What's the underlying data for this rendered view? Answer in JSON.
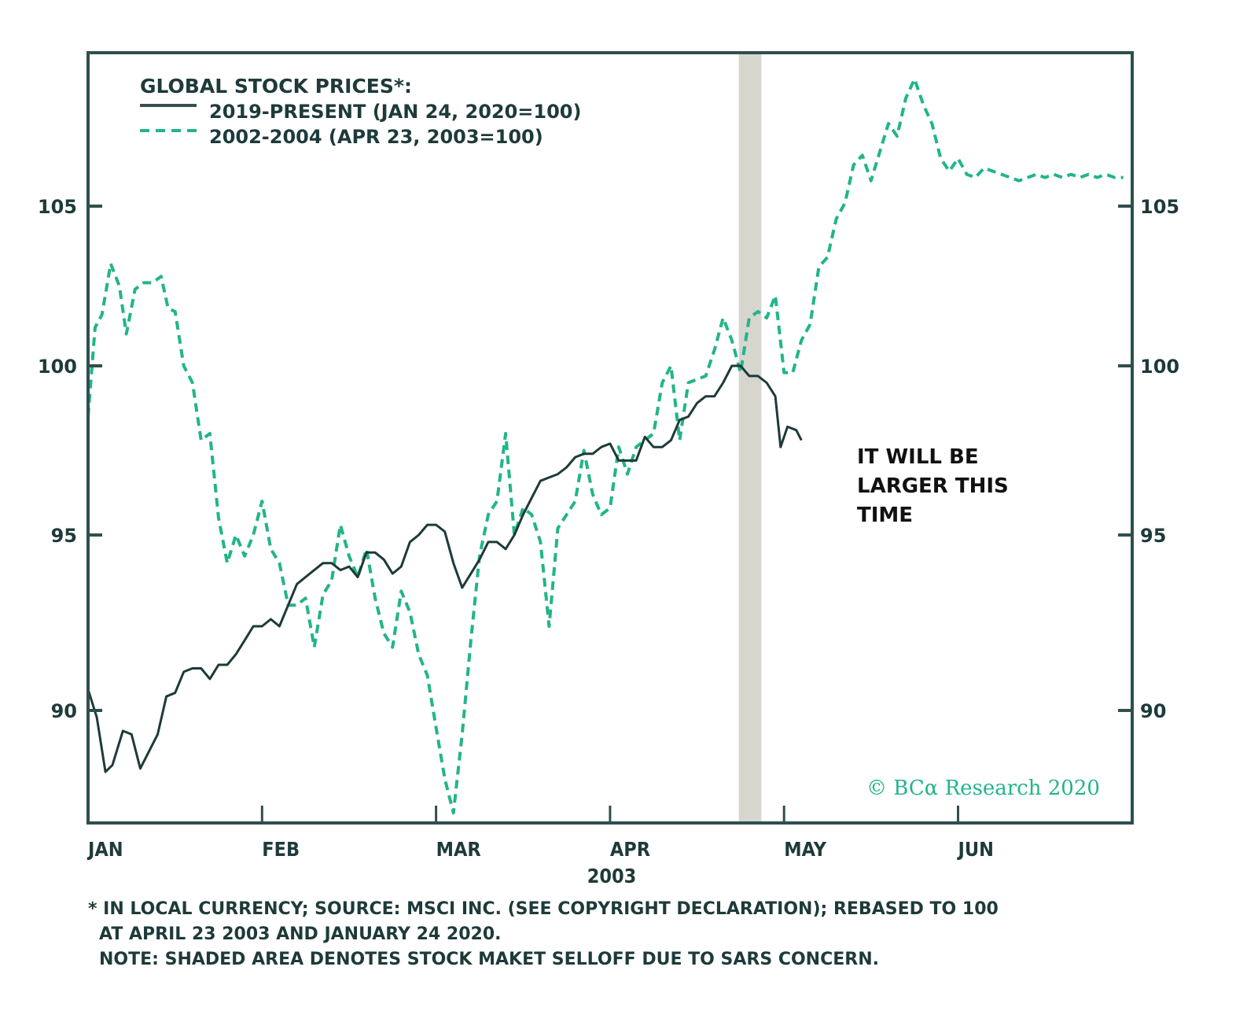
{
  "chart_data": {
    "type": "line",
    "title": "GLOBAL STOCK PRICES*:",
    "xlabel": "2003",
    "ylabel": "",
    "x_unit": "months elapsed since Jan 1 (2003 calendar)",
    "xlim": [
      0,
      6.0
    ],
    "ylim": [
      87,
      109.5
    ],
    "grid": false,
    "legend_position": "top-left",
    "x_ticks": [
      0,
      1,
      2,
      3,
      4,
      5
    ],
    "x_tick_labels": [
      "JAN",
      "FEB",
      "MAR",
      "APR",
      "MAY",
      "JUN"
    ],
    "y_ticks": [
      90,
      95,
      100,
      105
    ],
    "y_tick_labels": [
      "90",
      "95",
      "100",
      "105"
    ],
    "y_ticks_right": [
      "90",
      "95",
      "100",
      "105"
    ],
    "shaded_region": {
      "x_start": 3.74,
      "x_end": 3.87,
      "label": "SARS selloff",
      "color": "#d6d6cf"
    },
    "series": [
      {
        "name": "2019-PRESENT (JAN 24, 2020=100)",
        "style": "solid",
        "color": "#1e3a3a",
        "x": [
          0.0,
          0.05,
          0.1,
          0.14,
          0.2,
          0.25,
          0.3,
          0.35,
          0.4,
          0.45,
          0.5,
          0.55,
          0.6,
          0.65,
          0.7,
          0.75,
          0.8,
          0.85,
          0.9,
          0.95,
          1.0,
          1.05,
          1.1,
          1.15,
          1.2,
          1.25,
          1.3,
          1.35,
          1.4,
          1.45,
          1.5,
          1.55,
          1.6,
          1.65,
          1.7,
          1.75,
          1.8,
          1.85,
          1.9,
          1.95,
          2.0,
          2.05,
          2.1,
          2.15,
          2.2,
          2.25,
          2.3,
          2.35,
          2.4,
          2.45,
          2.5,
          2.55,
          2.6,
          2.65,
          2.7,
          2.75,
          2.8,
          2.85,
          2.9,
          2.95,
          3.0,
          3.05,
          3.1,
          3.15,
          3.2,
          3.25,
          3.3,
          3.35,
          3.4,
          3.45,
          3.5,
          3.55,
          3.6,
          3.65,
          3.7,
          3.75,
          3.8,
          3.85,
          3.9,
          3.95,
          3.98,
          4.02,
          4.07,
          4.1
        ],
        "values": [
          90.6,
          89.8,
          88.2,
          88.4,
          89.4,
          89.3,
          88.3,
          88.8,
          89.3,
          90.4,
          90.5,
          91.1,
          91.2,
          91.2,
          90.9,
          91.3,
          91.3,
          91.6,
          92.0,
          92.4,
          92.4,
          92.6,
          92.4,
          93.0,
          93.6,
          93.8,
          94.0,
          94.2,
          94.2,
          94.0,
          94.1,
          93.8,
          94.5,
          94.5,
          94.3,
          93.9,
          94.1,
          94.8,
          95.0,
          95.3,
          95.3,
          95.1,
          94.2,
          93.5,
          93.9,
          94.3,
          94.8,
          94.8,
          94.6,
          95.0,
          95.6,
          96.1,
          96.6,
          96.7,
          96.8,
          97.0,
          97.3,
          97.4,
          97.4,
          97.6,
          97.7,
          97.2,
          97.2,
          97.2,
          97.9,
          97.6,
          97.6,
          97.8,
          98.4,
          98.5,
          98.9,
          99.1,
          99.1,
          99.5,
          100.0,
          100.0,
          99.7,
          99.7,
          99.5,
          99.1,
          97.6,
          98.2,
          98.1,
          97.8
        ]
      },
      {
        "name": "2002-2004 (APR 23, 2003=100)",
        "style": "dashed",
        "color": "#22b48a",
        "x": [
          0.0,
          0.04,
          0.08,
          0.13,
          0.18,
          0.22,
          0.27,
          0.32,
          0.37,
          0.42,
          0.46,
          0.5,
          0.55,
          0.6,
          0.65,
          0.7,
          0.75,
          0.8,
          0.85,
          0.9,
          0.95,
          1.0,
          1.05,
          1.1,
          1.15,
          1.2,
          1.25,
          1.3,
          1.35,
          1.4,
          1.45,
          1.5,
          1.55,
          1.6,
          1.65,
          1.7,
          1.75,
          1.8,
          1.85,
          1.9,
          1.95,
          2.0,
          2.05,
          2.1,
          2.15,
          2.2,
          2.25,
          2.3,
          2.35,
          2.4,
          2.45,
          2.5,
          2.55,
          2.6,
          2.65,
          2.7,
          2.75,
          2.8,
          2.85,
          2.9,
          2.95,
          3.0,
          3.05,
          3.1,
          3.15,
          3.2,
          3.25,
          3.3,
          3.35,
          3.4,
          3.45,
          3.5,
          3.55,
          3.6,
          3.65,
          3.7,
          3.75,
          3.8,
          3.85,
          3.9,
          3.95,
          4.0,
          4.05,
          4.1,
          4.15,
          4.2,
          4.25,
          4.3,
          4.35,
          4.4,
          4.45,
          4.5,
          4.55,
          4.6,
          4.65,
          4.7,
          4.75,
          4.8,
          4.85,
          4.9,
          4.95,
          5.0,
          5.05,
          5.1,
          5.15,
          5.2,
          5.25,
          5.3,
          5.35,
          5.4,
          5.45,
          5.5,
          5.55,
          5.6,
          5.65,
          5.7,
          5.75,
          5.8,
          5.85,
          5.9,
          5.95
        ],
        "values": [
          98.5,
          101.2,
          101.6,
          103.2,
          102.5,
          101.0,
          102.4,
          102.6,
          102.6,
          102.8,
          101.8,
          101.7,
          100.0,
          99.5,
          97.8,
          98.0,
          95.5,
          94.2,
          95.0,
          94.4,
          95.0,
          96.0,
          94.6,
          94.2,
          93.0,
          93.0,
          93.2,
          91.8,
          93.3,
          93.7,
          95.3,
          94.4,
          93.8,
          94.6,
          93.2,
          92.2,
          91.8,
          93.4,
          92.8,
          91.6,
          91.0,
          89.5,
          88.0,
          87.0,
          89.3,
          92.0,
          94.4,
          95.6,
          96.0,
          98.0,
          95.0,
          95.8,
          95.6,
          94.8,
          92.4,
          95.2,
          95.6,
          96.0,
          97.5,
          96.2,
          95.6,
          95.8,
          97.6,
          96.8,
          97.6,
          97.8,
          98.0,
          99.5,
          100.0,
          97.8,
          99.5,
          99.6,
          99.7,
          100.5,
          101.5,
          100.8,
          99.8,
          101.5,
          101.7,
          101.5,
          102.2,
          99.8,
          99.8,
          100.8,
          101.3,
          103.1,
          103.4,
          104.6,
          105.1,
          106.3,
          106.6,
          105.8,
          106.7,
          107.6,
          107.2,
          108.4,
          109.0,
          108.2,
          107.6,
          106.5,
          106.1,
          106.5,
          106.0,
          105.9,
          106.2,
          106.1,
          106.0,
          105.9,
          105.8,
          105.9,
          106.0,
          105.9,
          106.0,
          105.9,
          106.0,
          105.9,
          106.0,
          105.9,
          106.0,
          105.9,
          105.9
        ]
      }
    ],
    "annotations": [
      {
        "text_lines": [
          "IT WILL BE",
          "LARGER THIS",
          "TIME"
        ]
      }
    ]
  },
  "legend": {
    "title": "GLOBAL STOCK PRICES*:",
    "items": [
      {
        "label": "2019-PRESENT (JAN 24, 2020=100)",
        "style": "solid"
      },
      {
        "label": "2002-2004 (APR 23, 2003=100)",
        "style": "dashed"
      }
    ]
  },
  "annotation": {
    "line1": "IT WILL BE",
    "line2": "LARGER THIS",
    "line3": "TIME"
  },
  "copyright": "© BCα Research 2020",
  "year_label": "2003",
  "footnotes": {
    "line1": "* IN LOCAL CURRENCY; SOURCE: MSCI INC. (SEE COPYRIGHT DECLARATION); REBASED TO 100",
    "line2": "AT APRIL 23 2003 AND JANUARY 24 2020.",
    "line3": "NOTE: SHADED AREA DENOTES STOCK MAKET SELLOFF DUE TO SARS CONCERN."
  },
  "colors": {
    "frame": "#2f4f4f",
    "series_2019": "#1e3a3a",
    "series_2003": "#22b48a",
    "shade": "#d6d6cf",
    "text": "#1e3a3a"
  }
}
